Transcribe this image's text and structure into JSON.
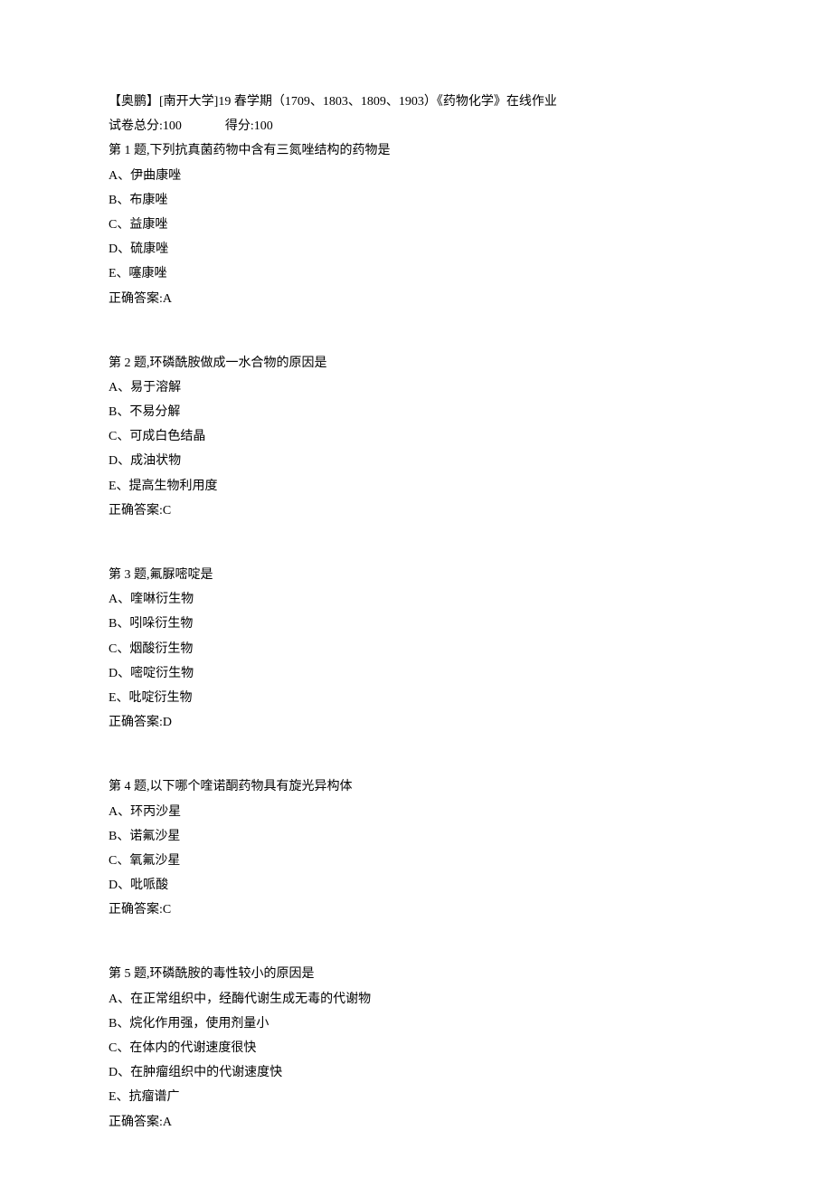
{
  "header": {
    "title": "【奥鹏】[南开大学]19 春学期（1709、1803、1809、1903）《药物化学》在线作业",
    "total_label": "试卷总分:",
    "total_value": "100",
    "score_label": "得分:",
    "score_value": "100"
  },
  "questions": [
    {
      "title": "第 1 题,下列抗真菌药物中含有三氮唑结构的药物是",
      "options": [
        "A、伊曲康唑",
        "B、布康唑",
        "C、益康唑",
        "D、硫康唑",
        "E、噻康唑"
      ],
      "answer": "正确答案:A"
    },
    {
      "title": "第 2 题,环磷酰胺做成一水合物的原因是",
      "options": [
        "A、易于溶解",
        "B、不易分解",
        "C、可成白色结晶",
        "D、成油状物",
        "E、提高生物利用度"
      ],
      "answer": "正确答案:C"
    },
    {
      "title": "第 3 题,氟脲嘧啶是",
      "options": [
        "A、喹啉衍生物",
        "B、吲哚衍生物",
        "C、烟酸衍生物",
        "D、嘧啶衍生物",
        "E、吡啶衍生物"
      ],
      "answer": "正确答案:D"
    },
    {
      "title": "第 4 题,以下哪个喹诺酮药物具有旋光异构体",
      "options": [
        "A、环丙沙星",
        "B、诺氟沙星",
        "C、氧氟沙星",
        "D、吡哌酸"
      ],
      "answer": "正确答案:C"
    },
    {
      "title": "第 5 题,环磷酰胺的毒性较小的原因是",
      "options": [
        "A、在正常组织中，经酶代谢生成无毒的代谢物",
        "B、烷化作用强，使用剂量小",
        "C、在体内的代谢速度很快",
        "D、在肿瘤组织中的代谢速度快",
        "E、抗瘤谱广"
      ],
      "answer": "正确答案:A"
    }
  ]
}
